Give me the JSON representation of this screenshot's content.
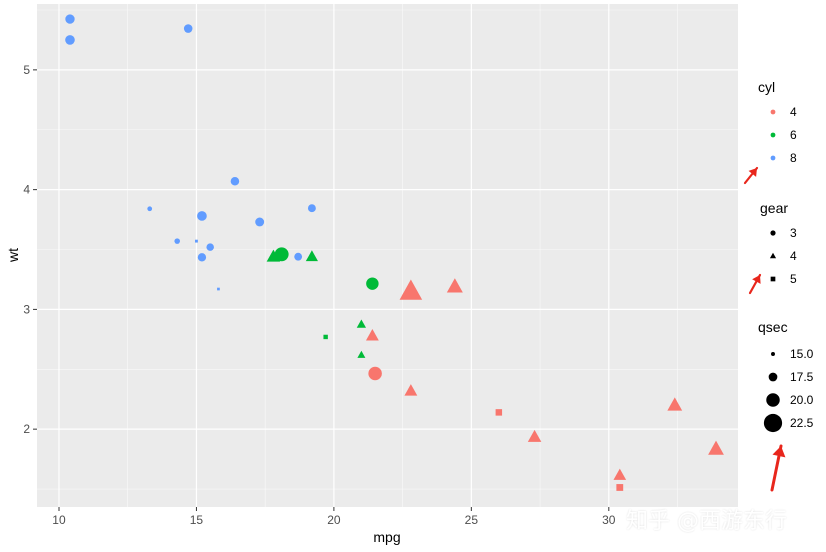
{
  "chart_data": {
    "type": "scatter",
    "title": "",
    "xlabel": "mpg",
    "ylabel": "wt",
    "xlim": [
      9.2,
      34.7
    ],
    "ylim": [
      1.35,
      5.55
    ],
    "x_ticks": [
      10,
      15,
      20,
      25,
      30
    ],
    "y_ticks": [
      2,
      3,
      4,
      5
    ],
    "grid": true,
    "legend_position": "right",
    "colors": {
      "4": "#F8766D",
      "6": "#00BA38",
      "8": "#619CFF"
    },
    "legends": [
      {
        "title": "cyl",
        "kind": "color",
        "entries": [
          "4",
          "6",
          "8"
        ]
      },
      {
        "title": "gear",
        "kind": "shape",
        "entries": [
          "3",
          "4",
          "5"
        ],
        "shapes": [
          "circle",
          "triangle",
          "square"
        ]
      },
      {
        "title": "qsec",
        "kind": "size",
        "entries": [
          "15.0",
          "17.5",
          "20.0",
          "22.5"
        ],
        "values": [
          15.0,
          17.5,
          20.0,
          22.5
        ]
      }
    ],
    "points": [
      {
        "x": 21.0,
        "y": 2.62,
        "cyl": "6",
        "gear": "4",
        "qsec": 16.46
      },
      {
        "x": 21.0,
        "y": 2.875,
        "cyl": "6",
        "gear": "4",
        "qsec": 17.02
      },
      {
        "x": 22.8,
        "y": 2.32,
        "cyl": "4",
        "gear": "4",
        "qsec": 18.61
      },
      {
        "x": 21.4,
        "y": 3.215,
        "cyl": "6",
        "gear": "3",
        "qsec": 19.44
      },
      {
        "x": 18.7,
        "y": 3.44,
        "cyl": "8",
        "gear": "3",
        "qsec": 17.02
      },
      {
        "x": 18.1,
        "y": 3.46,
        "cyl": "6",
        "gear": "3",
        "qsec": 20.22
      },
      {
        "x": 14.3,
        "y": 3.57,
        "cyl": "8",
        "gear": "3",
        "qsec": 15.84
      },
      {
        "x": 24.4,
        "y": 3.19,
        "cyl": "4",
        "gear": "4",
        "qsec": 20.0
      },
      {
        "x": 22.8,
        "y": 3.15,
        "cyl": "4",
        "gear": "4",
        "qsec": 22.9
      },
      {
        "x": 19.2,
        "y": 3.44,
        "cyl": "6",
        "gear": "4",
        "qsec": 18.3
      },
      {
        "x": 17.8,
        "y": 3.44,
        "cyl": "6",
        "gear": "4",
        "qsec": 18.9
      },
      {
        "x": 16.4,
        "y": 4.07,
        "cyl": "8",
        "gear": "3",
        "qsec": 17.4
      },
      {
        "x": 17.3,
        "y": 3.73,
        "cyl": "8",
        "gear": "3",
        "qsec": 17.6
      },
      {
        "x": 15.2,
        "y": 3.78,
        "cyl": "8",
        "gear": "3",
        "qsec": 18.0
      },
      {
        "x": 10.4,
        "y": 5.25,
        "cyl": "8",
        "gear": "3",
        "qsec": 17.98
      },
      {
        "x": 10.4,
        "y": 5.424,
        "cyl": "8",
        "gear": "3",
        "qsec": 17.82
      },
      {
        "x": 14.7,
        "y": 5.345,
        "cyl": "8",
        "gear": "3",
        "qsec": 17.42
      },
      {
        "x": 32.4,
        "y": 2.2,
        "cyl": "4",
        "gear": "4",
        "qsec": 19.47
      },
      {
        "x": 30.4,
        "y": 1.615,
        "cyl": "4",
        "gear": "4",
        "qsec": 18.52
      },
      {
        "x": 33.9,
        "y": 1.835,
        "cyl": "4",
        "gear": "4",
        "qsec": 19.9
      },
      {
        "x": 21.5,
        "y": 2.465,
        "cyl": "4",
        "gear": "3",
        "qsec": 20.01
      },
      {
        "x": 15.5,
        "y": 3.52,
        "cyl": "8",
        "gear": "3",
        "qsec": 16.87
      },
      {
        "x": 15.2,
        "y": 3.435,
        "cyl": "8",
        "gear": "3",
        "qsec": 17.3
      },
      {
        "x": 13.3,
        "y": 3.84,
        "cyl": "8",
        "gear": "3",
        "qsec": 15.41
      },
      {
        "x": 19.2,
        "y": 3.845,
        "cyl": "8",
        "gear": "3",
        "qsec": 17.05
      },
      {
        "x": 27.3,
        "y": 1.935,
        "cyl": "4",
        "gear": "4",
        "qsec": 18.9
      },
      {
        "x": 26.0,
        "y": 2.14,
        "cyl": "4",
        "gear": "5",
        "qsec": 16.7
      },
      {
        "x": 30.4,
        "y": 1.513,
        "cyl": "4",
        "gear": "5",
        "qsec": 16.9
      },
      {
        "x": 15.8,
        "y": 3.17,
        "cyl": "8",
        "gear": "5",
        "qsec": 14.5
      },
      {
        "x": 19.7,
        "y": 2.77,
        "cyl": "6",
        "gear": "5",
        "qsec": 15.5
      },
      {
        "x": 15.0,
        "y": 3.57,
        "cyl": "8",
        "gear": "5",
        "qsec": 14.6
      },
      {
        "x": 21.4,
        "y": 2.78,
        "cyl": "4",
        "gear": "4",
        "qsec": 18.6
      }
    ],
    "annotation_arrows": {
      "count": 3,
      "color": "#E8261C"
    }
  },
  "watermark": "知乎 @西游东行"
}
